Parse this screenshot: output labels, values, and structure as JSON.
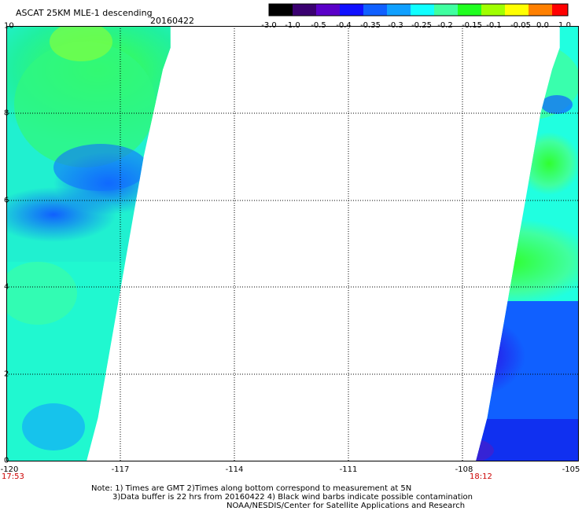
{
  "header": {
    "title": "ASCAT 25KM MLE-1 descending",
    "date": "20160422"
  },
  "colorbar": {
    "labels": [
      "-3.0",
      "-1.0",
      "-0.5",
      "-0.4",
      "-0.35",
      "-0.3",
      "-0.25",
      "-0.2",
      "-0.15",
      "-0.1",
      "-0.05",
      "0.0",
      "1.0"
    ],
    "colors": [
      "#000000",
      "#3a0070",
      "#5a00c8",
      "#1010ff",
      "#1060ff",
      "#10a0ff",
      "#10ffff",
      "#40ffa0",
      "#20ff20",
      "#a0ff00",
      "#ffff00",
      "#ff8000",
      "#ff0000"
    ]
  },
  "axes": {
    "x_ticks": [
      "-120",
      "-117",
      "-114",
      "-111",
      "-108",
      "-105"
    ],
    "y_ticks": [
      "0",
      "2",
      "4",
      "6",
      "8",
      "10"
    ],
    "x_range": [
      -120,
      -105
    ],
    "y_range": [
      0,
      10
    ]
  },
  "swath_times": {
    "left": "17:53",
    "right": "18:12"
  },
  "notes": {
    "line1": "Note: 1) Times are GMT 2)Times along bottom correspond to measurement at 5N",
    "line2": "3)Data buffer is 22 hrs from 20160422 4) Black wind barbs indicate possible contamination",
    "line3": "NOAA/NESDIS/Center for Satellite Applications and Research"
  },
  "map_data": {
    "left_swath_edge": [
      {
        "lat": 10.0,
        "lon": -115.7
      },
      {
        "lat": 9.5,
        "lon": -115.7
      },
      {
        "lat": 9.0,
        "lon": -115.9
      },
      {
        "lat": 8.2,
        "lon": -116.1
      },
      {
        "lat": 7.0,
        "lon": -116.4
      },
      {
        "lat": 6.0,
        "lon": -116.6
      },
      {
        "lat": 5.0,
        "lon": -116.8
      },
      {
        "lat": 4.0,
        "lon": -117.0
      },
      {
        "lat": 3.0,
        "lon": -117.2
      },
      {
        "lat": 2.0,
        "lon": -117.4
      },
      {
        "lat": 1.0,
        "lon": -117.6
      },
      {
        "lat": 0.0,
        "lon": -117.9
      }
    ],
    "right_swath_edge": [
      {
        "lat": 10.0,
        "lon": -105.5
      },
      {
        "lat": 9.5,
        "lon": -105.5
      },
      {
        "lat": 9.0,
        "lon": -105.7
      },
      {
        "lat": 8.0,
        "lon": -106.0
      },
      {
        "lat": 7.0,
        "lon": -106.2
      },
      {
        "lat": 6.0,
        "lon": -106.4
      },
      {
        "lat": 5.0,
        "lon": -106.6
      },
      {
        "lat": 4.0,
        "lon": -106.8
      },
      {
        "lat": 3.0,
        "lon": -107.0
      },
      {
        "lat": 2.0,
        "lon": -107.2
      },
      {
        "lat": 1.0,
        "lon": -107.4
      },
      {
        "lat": 0.0,
        "lon": -107.7
      }
    ]
  }
}
